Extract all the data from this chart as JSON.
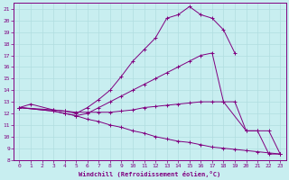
{
  "xlabel": "Windchill (Refroidissement éolien,°C)",
  "bg_color": "#c8eef0",
  "line_color": "#800080",
  "grid_color": "#b0dde0",
  "xlim": [
    -0.5,
    23.5
  ],
  "ylim": [
    8,
    21.5
  ],
  "xticks": [
    0,
    1,
    2,
    3,
    4,
    5,
    6,
    7,
    8,
    9,
    10,
    11,
    12,
    13,
    14,
    15,
    16,
    17,
    18,
    19,
    20,
    21,
    22,
    23
  ],
  "yticks": [
    8,
    9,
    10,
    11,
    12,
    13,
    14,
    15,
    16,
    17,
    18,
    19,
    20,
    21
  ],
  "curve1_x": [
    0,
    1,
    3,
    4,
    5,
    6,
    7,
    8,
    9,
    10,
    11,
    12,
    13,
    14,
    15,
    16,
    17,
    18,
    19
  ],
  "curve1_y": [
    12.5,
    12.8,
    12.3,
    12.2,
    12.0,
    12.5,
    13.2,
    14.0,
    15.2,
    16.5,
    17.5,
    18.5,
    20.2,
    20.5,
    21.2,
    20.5,
    20.2,
    19.2,
    17.2
  ],
  "curve2_x": [
    0,
    3,
    4,
    5,
    6,
    7,
    8,
    9,
    10,
    11,
    12,
    13,
    14,
    15,
    16,
    17,
    18,
    20,
    21,
    22,
    23
  ],
  "curve2_y": [
    12.5,
    12.2,
    12.0,
    11.8,
    12.0,
    12.5,
    13.0,
    13.5,
    14.0,
    14.5,
    15.0,
    15.5,
    16.0,
    16.5,
    17.0,
    17.2,
    13.0,
    10.5,
    10.5,
    8.5,
    8.5
  ],
  "curve3_x": [
    0,
    3,
    4,
    5,
    6,
    7,
    8,
    9,
    10,
    11,
    12,
    13,
    14,
    15,
    16,
    17,
    18,
    19,
    20,
    21,
    22,
    23
  ],
  "curve3_y": [
    12.5,
    12.2,
    12.0,
    11.8,
    11.5,
    11.3,
    11.0,
    10.8,
    10.5,
    10.3,
    10.0,
    9.8,
    9.6,
    9.5,
    9.3,
    9.1,
    9.0,
    8.9,
    8.8,
    8.7,
    8.6,
    8.5
  ],
  "curve4_x": [
    0,
    3,
    4,
    5,
    6,
    7,
    8,
    9,
    10,
    11,
    12,
    13,
    14,
    15,
    16,
    17,
    18,
    19,
    20,
    21,
    22,
    23
  ],
  "curve4_y": [
    12.5,
    12.3,
    12.2,
    12.1,
    12.1,
    12.1,
    12.1,
    12.2,
    12.3,
    12.5,
    12.6,
    12.7,
    12.8,
    12.9,
    13.0,
    13.0,
    13.0,
    13.0,
    10.5,
    10.5,
    10.5,
    8.5
  ]
}
